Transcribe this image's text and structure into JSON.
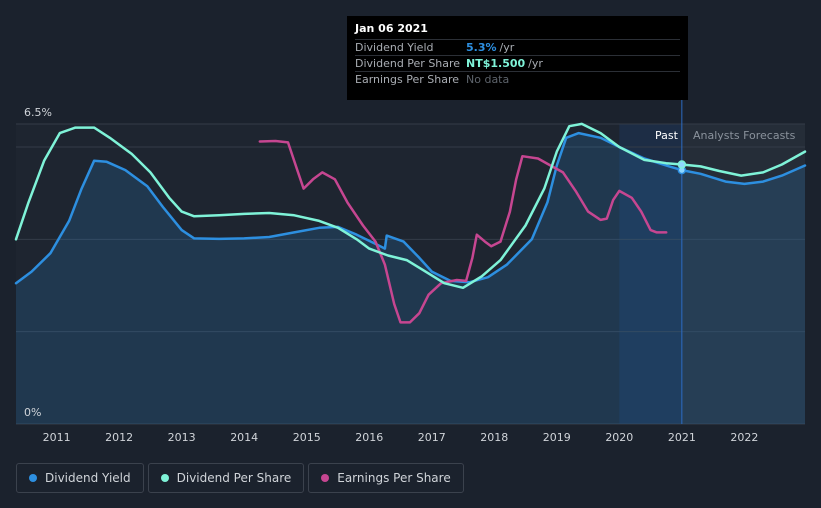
{
  "chart_data": {
    "type": "line",
    "x_range": [
      2010.35,
      2022.97
    ],
    "y_range_pct": [
      0,
      6.5
    ],
    "y_tick_labels": [
      "6.5%",
      "0%"
    ],
    "x_tick_labels": [
      "2011",
      "2012",
      "2013",
      "2014",
      "2015",
      "2016",
      "2017",
      "2018",
      "2019",
      "2020",
      "2021",
      "2022"
    ],
    "x_tick_values": [
      2011,
      2012,
      2013,
      2014,
      2015,
      2016,
      2017,
      2018,
      2019,
      2020,
      2021,
      2022
    ],
    "gridlines_pct": [
      0,
      2,
      4,
      6,
      6.5
    ],
    "past_end": 2021.0,
    "highlight_start": 2020.0,
    "past_label": "Past",
    "forecast_label": "Analysts Forecasts",
    "series": [
      {
        "name": "Dividend Yield",
        "color": "#2d8fe0",
        "unit": "%",
        "points": [
          [
            2010.35,
            3.05
          ],
          [
            2010.6,
            3.3
          ],
          [
            2010.9,
            3.7
          ],
          [
            2011.2,
            4.4
          ],
          [
            2011.4,
            5.1
          ],
          [
            2011.6,
            5.7
          ],
          [
            2011.8,
            5.68
          ],
          [
            2012.1,
            5.5
          ],
          [
            2012.45,
            5.15
          ],
          [
            2012.7,
            4.7
          ],
          [
            2013.0,
            4.2
          ],
          [
            2013.2,
            4.02
          ],
          [
            2013.6,
            4.01
          ],
          [
            2014.0,
            4.02
          ],
          [
            2014.4,
            4.05
          ],
          [
            2014.8,
            4.15
          ],
          [
            2015.2,
            4.25
          ],
          [
            2015.5,
            4.27
          ],
          [
            2015.8,
            4.1
          ],
          [
            2016.1,
            3.9
          ],
          [
            2016.25,
            3.8
          ],
          [
            2016.28,
            4.08
          ],
          [
            2016.55,
            3.95
          ],
          [
            2016.8,
            3.6
          ],
          [
            2017.0,
            3.3
          ],
          [
            2017.3,
            3.1
          ],
          [
            2017.6,
            3.07
          ],
          [
            2017.9,
            3.18
          ],
          [
            2018.2,
            3.45
          ],
          [
            2018.6,
            4.0
          ],
          [
            2018.85,
            4.8
          ],
          [
            2019.0,
            5.6
          ],
          [
            2019.15,
            6.2
          ],
          [
            2019.35,
            6.3
          ],
          [
            2019.7,
            6.2
          ],
          [
            2020.0,
            6.0
          ],
          [
            2020.4,
            5.75
          ],
          [
            2020.8,
            5.58
          ],
          [
            2021.0,
            5.5
          ],
          [
            2021.3,
            5.42
          ],
          [
            2021.7,
            5.25
          ],
          [
            2022.0,
            5.2
          ],
          [
            2022.3,
            5.25
          ],
          [
            2022.6,
            5.38
          ],
          [
            2022.97,
            5.6
          ]
        ]
      },
      {
        "name": "Dividend Per Share",
        "color": "#7ff3d8",
        "unit": "NT$",
        "points": [
          [
            2010.35,
            4.0
          ],
          [
            2010.55,
            4.8
          ],
          [
            2010.8,
            5.7
          ],
          [
            2011.05,
            6.3
          ],
          [
            2011.3,
            6.42
          ],
          [
            2011.6,
            6.42
          ],
          [
            2011.85,
            6.2
          ],
          [
            2012.2,
            5.85
          ],
          [
            2012.5,
            5.45
          ],
          [
            2012.8,
            4.9
          ],
          [
            2013.0,
            4.6
          ],
          [
            2013.2,
            4.5
          ],
          [
            2013.6,
            4.52
          ],
          [
            2014.0,
            4.55
          ],
          [
            2014.4,
            4.57
          ],
          [
            2014.8,
            4.52
          ],
          [
            2015.2,
            4.4
          ],
          [
            2015.5,
            4.25
          ],
          [
            2015.8,
            4.0
          ],
          [
            2016.0,
            3.8
          ],
          [
            2016.3,
            3.65
          ],
          [
            2016.6,
            3.55
          ],
          [
            2016.9,
            3.3
          ],
          [
            2017.2,
            3.05
          ],
          [
            2017.5,
            2.95
          ],
          [
            2017.8,
            3.2
          ],
          [
            2018.1,
            3.55
          ],
          [
            2018.5,
            4.3
          ],
          [
            2018.8,
            5.1
          ],
          [
            2019.0,
            5.9
          ],
          [
            2019.2,
            6.45
          ],
          [
            2019.4,
            6.5
          ],
          [
            2019.7,
            6.3
          ],
          [
            2020.0,
            6.0
          ],
          [
            2020.4,
            5.72
          ],
          [
            2020.75,
            5.65
          ],
          [
            2021.0,
            5.62
          ],
          [
            2021.3,
            5.58
          ],
          [
            2021.6,
            5.48
          ],
          [
            2021.95,
            5.38
          ],
          [
            2022.3,
            5.45
          ],
          [
            2022.6,
            5.62
          ],
          [
            2022.97,
            5.9
          ]
        ]
      },
      {
        "name": "Earnings Per Share",
        "color": "#c64691",
        "unit": "NT$",
        "points": [
          [
            2014.25,
            6.12
          ],
          [
            2014.5,
            6.13
          ],
          [
            2014.7,
            6.1
          ],
          [
            2014.85,
            5.5
          ],
          [
            2014.95,
            5.1
          ],
          [
            2015.1,
            5.3
          ],
          [
            2015.25,
            5.45
          ],
          [
            2015.45,
            5.3
          ],
          [
            2015.65,
            4.8
          ],
          [
            2015.9,
            4.3
          ],
          [
            2016.1,
            3.95
          ],
          [
            2016.25,
            3.45
          ],
          [
            2016.4,
            2.6
          ],
          [
            2016.5,
            2.2
          ],
          [
            2016.65,
            2.2
          ],
          [
            2016.8,
            2.4
          ],
          [
            2016.95,
            2.8
          ],
          [
            2017.15,
            3.05
          ],
          [
            2017.4,
            3.12
          ],
          [
            2017.55,
            3.1
          ],
          [
            2017.65,
            3.6
          ],
          [
            2017.72,
            4.1
          ],
          [
            2017.85,
            3.95
          ],
          [
            2017.95,
            3.85
          ],
          [
            2018.1,
            3.95
          ],
          [
            2018.25,
            4.6
          ],
          [
            2018.35,
            5.3
          ],
          [
            2018.45,
            5.8
          ],
          [
            2018.7,
            5.75
          ],
          [
            2018.9,
            5.6
          ],
          [
            2019.1,
            5.45
          ],
          [
            2019.3,
            5.05
          ],
          [
            2019.5,
            4.6
          ],
          [
            2019.7,
            4.42
          ],
          [
            2019.8,
            4.45
          ],
          [
            2019.9,
            4.85
          ],
          [
            2020.0,
            5.05
          ],
          [
            2020.2,
            4.9
          ],
          [
            2020.35,
            4.6
          ],
          [
            2020.5,
            4.2
          ],
          [
            2020.6,
            4.15
          ],
          [
            2020.75,
            4.15
          ]
        ]
      }
    ]
  },
  "tooltip": {
    "date": "Jan 06 2021",
    "rows": [
      {
        "label": "Dividend Yield",
        "value": "5.3%",
        "unit": "/yr"
      },
      {
        "label": "Dividend Per Share",
        "value": "NT$1.500",
        "unit": "/yr"
      },
      {
        "label": "Earnings Per Share",
        "value": "No data",
        "unit": ""
      }
    ]
  },
  "legend": {
    "items": [
      {
        "label": "Dividend Yield",
        "color": "#2d8fe0"
      },
      {
        "label": "Dividend Per Share",
        "color": "#7ff3d8"
      },
      {
        "label": "Earnings Per Share",
        "color": "#c64691"
      }
    ]
  }
}
